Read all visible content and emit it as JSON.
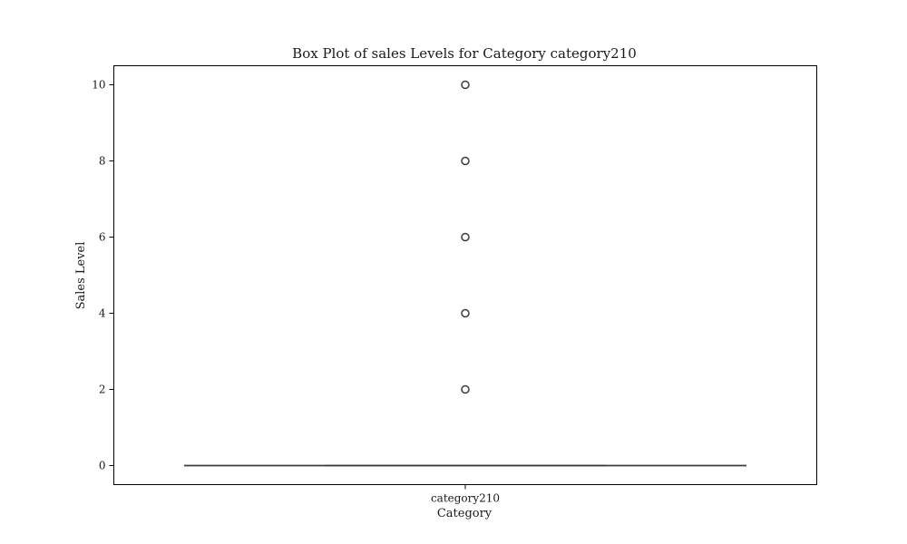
{
  "chart_data": {
    "type": "box",
    "title": "Box Plot of sales Levels for Category category210",
    "xlabel": "Category",
    "ylabel": "Sales Level",
    "categories": [
      "category210"
    ],
    "yticks": [
      "0",
      "2",
      "4",
      "6",
      "8",
      "10"
    ],
    "ylim": [
      -0.5,
      10.5
    ],
    "boxes": [
      {
        "category": "category210",
        "whisker_low": 0,
        "q1": 0,
        "median": 0,
        "q3": 0,
        "whisker_high": 0,
        "outliers": [
          2,
          4,
          6,
          8,
          10
        ]
      }
    ],
    "grid": false,
    "colors": {
      "box": "#3d3d3d",
      "frame": "#000000"
    }
  }
}
